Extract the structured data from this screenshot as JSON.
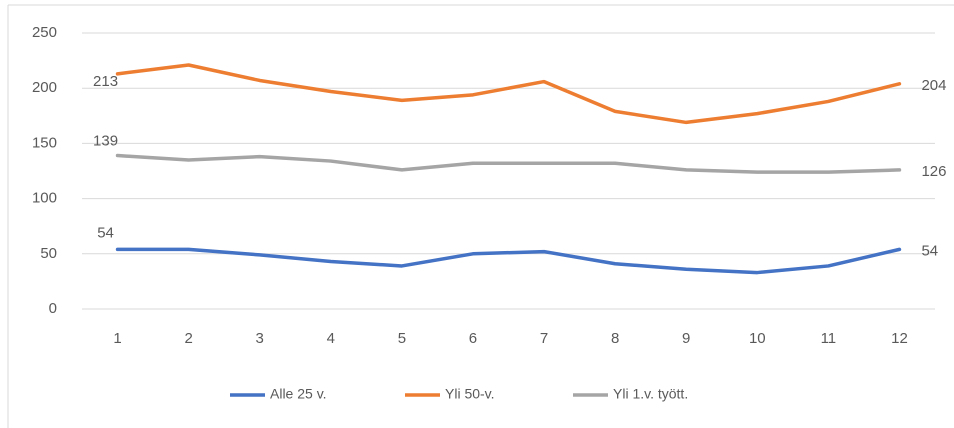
{
  "chart_data": {
    "type": "line",
    "categories": [
      "1",
      "2",
      "3",
      "4",
      "5",
      "6",
      "7",
      "8",
      "9",
      "10",
      "11",
      "12"
    ],
    "series": [
      {
        "name": "Alle 25 v.",
        "color": "#4472c4",
        "values": [
          54,
          54,
          49,
          43,
          39,
          50,
          52,
          41,
          36,
          33,
          39,
          54
        ]
      },
      {
        "name": "Yli 50-v.",
        "color": "#ed7d31",
        "values": [
          213,
          221,
          207,
          197,
          189,
          194,
          206,
          179,
          169,
          177,
          188,
          204
        ]
      },
      {
        "name": "Yli 1.v. tyött.",
        "color": "#a5a5a5",
        "values": [
          139,
          135,
          138,
          134,
          126,
          132,
          132,
          132,
          126,
          124,
          124,
          126
        ]
      }
    ],
    "ylim": [
      0,
      250
    ],
    "yticks": [
      0,
      50,
      100,
      150,
      200,
      250
    ],
    "grid": true
  }
}
